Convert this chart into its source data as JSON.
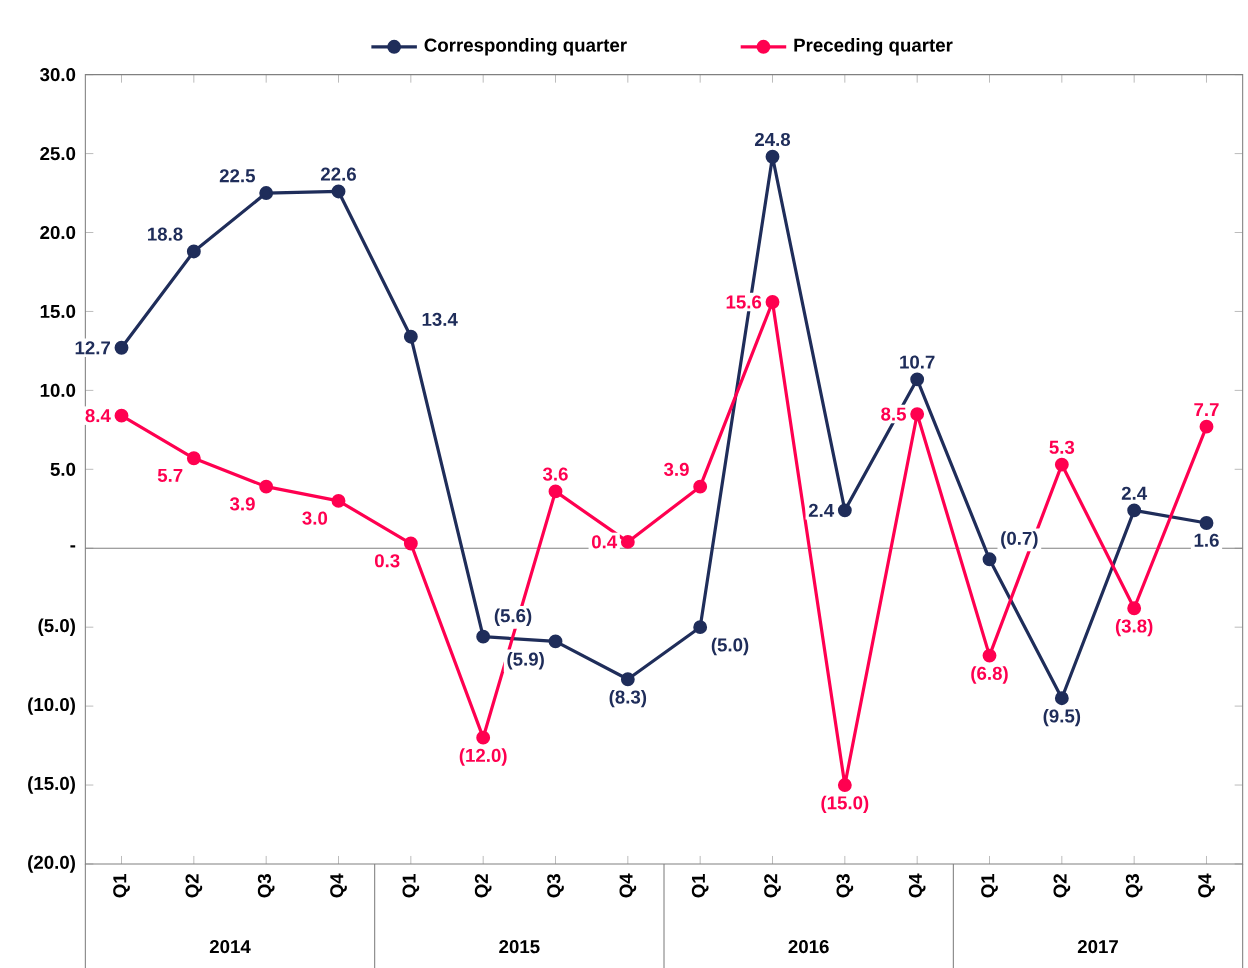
{
  "chart_data": {
    "type": "line",
    "categories": [
      "Q1",
      "Q2",
      "Q3",
      "Q4",
      "Q1",
      "Q2",
      "Q3",
      "Q4",
      "Q1",
      "Q2",
      "Q3",
      "Q4",
      "Q1",
      "Q2",
      "Q3",
      "Q4"
    ],
    "series": [
      {
        "name": "Corresponding quarter",
        "color": "#1f2d5a",
        "values": [
          12.7,
          18.8,
          22.5,
          22.6,
          13.4,
          -5.6,
          -5.9,
          -8.3,
          -5.0,
          24.8,
          2.4,
          10.7,
          -0.7,
          -9.5,
          2.4,
          1.6
        ],
        "value_labels": [
          "12.7",
          "18.8",
          "22.5",
          "22.6",
          "13.4",
          "(5.6)",
          "(5.9)",
          "(8.3)",
          "(5.0)",
          "24.8",
          "2.4",
          "10.7",
          "(0.7)",
          "(9.5)",
          "2.4",
          "1.6"
        ]
      },
      {
        "name": "Preceding quarter",
        "color": "#ff0050",
        "values": [
          8.4,
          5.7,
          3.9,
          3.0,
          0.3,
          -12.0,
          3.6,
          0.4,
          3.9,
          15.6,
          -15.0,
          8.5,
          -6.8,
          5.3,
          -3.8,
          7.7
        ],
        "value_labels": [
          "8.4",
          "5.7",
          "3.9",
          "3.0",
          "0.3",
          "(12.0)",
          "3.6",
          "0.4",
          "3.9",
          "15.6",
          "(15.0)",
          "8.5",
          "(6.8)",
          "5.3",
          "(3.8)",
          "7.7"
        ]
      }
    ],
    "ylim": [
      -20,
      30
    ],
    "yticks": [
      {
        "value": 30,
        "label": "30.0"
      },
      {
        "value": 25,
        "label": "25.0"
      },
      {
        "value": 20,
        "label": "20.0"
      },
      {
        "value": 15,
        "label": "15.0"
      },
      {
        "value": 10,
        "label": "10.0"
      },
      {
        "value": 5,
        "label": "5.0"
      },
      {
        "value": 0,
        "label": "-"
      },
      {
        "value": -5,
        "label": "(5.0)"
      },
      {
        "value": -10,
        "label": "(10.0)"
      },
      {
        "value": -15,
        "label": "(15.0)"
      },
      {
        "value": -20,
        "label": "(20.0)"
      }
    ],
    "annotations": [
      "2014",
      "2015",
      "2016",
      "2017"
    ],
    "ref_lines": [
      {
        "axis": "y",
        "value": 0,
        "color": "#808080"
      }
    ],
    "legend": "top",
    "marker": "circle",
    "line_style": "solid",
    "grid": false
  }
}
